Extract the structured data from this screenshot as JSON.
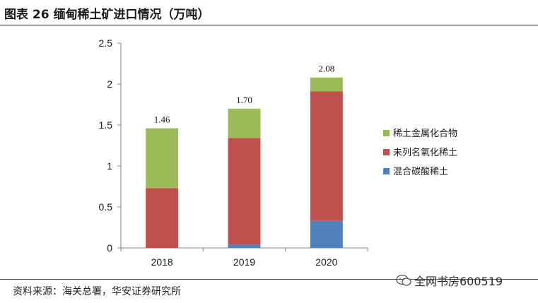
{
  "figure": {
    "title": "图表 26 缅甸稀土矿进口情况（万吨）",
    "source": "资料来源：海关总署，华安证券研究所",
    "watermark": "全网书房600519"
  },
  "chart_data": {
    "type": "bar",
    "stacked": true,
    "categories": [
      "2018",
      "2019",
      "2020"
    ],
    "series": [
      {
        "name": "混合碳酸稀土",
        "color": "#4f81bd",
        "values": [
          0,
          0.04,
          0.33
        ]
      },
      {
        "name": "未列名氧化稀土",
        "color": "#c0504d",
        "values": [
          0.73,
          1.3,
          1.58
        ]
      },
      {
        "name": "稀土金属化合物",
        "color": "#9bbb59",
        "values": [
          0.73,
          0.36,
          0.17
        ]
      }
    ],
    "totals": [
      "1.46",
      "1.70",
      "2.08"
    ],
    "ylim": [
      0,
      2.5
    ],
    "yticks": [
      "0",
      "0.5",
      "1",
      "1.5",
      "2",
      "2.5"
    ],
    "xlabel": "",
    "ylabel": "",
    "legend_position": "right",
    "grid": false
  }
}
